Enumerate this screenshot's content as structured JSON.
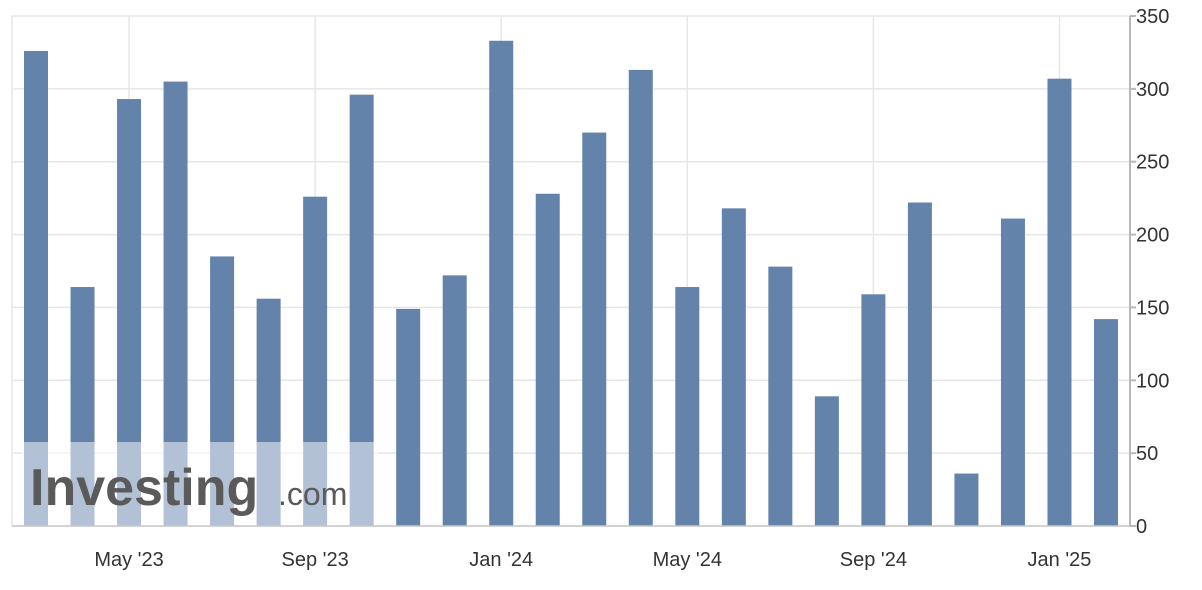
{
  "chart_data": {
    "type": "bar",
    "x": [
      "Mar '23",
      "Apr '23",
      "May '23",
      "Jun '23",
      "Jul '23",
      "Aug '23",
      "Sep '23",
      "Oct '23",
      "Nov '23",
      "Dec '23",
      "Jan '24",
      "Feb '24",
      "Mar '24",
      "Apr '24",
      "May '24",
      "Jun '24",
      "Jul '24",
      "Aug '24",
      "Sep '24",
      "Oct '24",
      "Nov '24",
      "Dec '24",
      "Jan '25",
      "Feb '25"
    ],
    "values": [
      326,
      164,
      293,
      305,
      185,
      156,
      226,
      296,
      149,
      172,
      333,
      228,
      270,
      313,
      164,
      218,
      178,
      89,
      159,
      222,
      36,
      211,
      307,
      142
    ],
    "tick_labels": [
      "May '23",
      "Sep '23",
      "Jan '24",
      "May '24",
      "Sep '24",
      "Jan '25"
    ],
    "tick_positions": [
      "May '23",
      "Sep '23",
      "Jan '24",
      "May '24",
      "Sep '24",
      "Jan '25"
    ],
    "y_ticks": [
      0,
      50,
      100,
      150,
      200,
      250,
      300,
      350
    ],
    "ylim": [
      0,
      350
    ],
    "grid": true,
    "y_axis_side": "right",
    "bar_color": "#6483ab",
    "title": "",
    "xlabel": "",
    "ylabel": ""
  },
  "watermark": {
    "text_main": "Investing",
    "text_suffix": ".com"
  }
}
